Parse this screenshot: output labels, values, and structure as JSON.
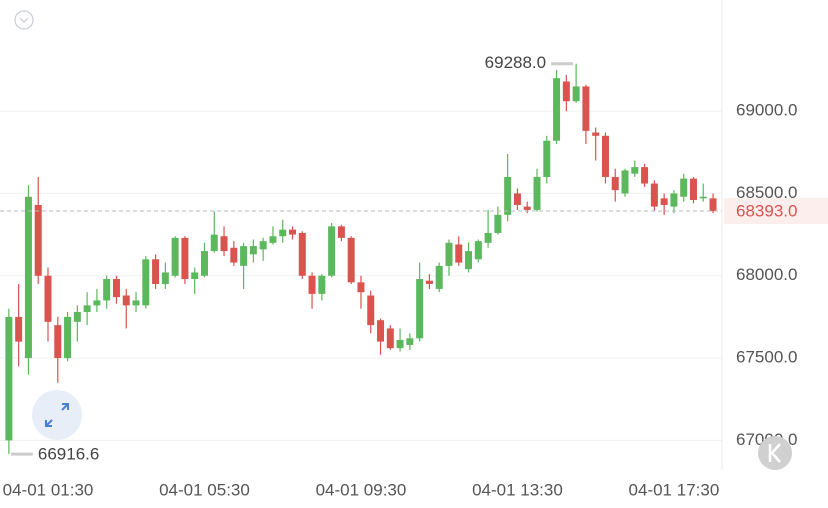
{
  "chart_data": {
    "type": "candlestick",
    "categories": [
      null,
      null,
      null,
      null,
      "04-01 01:30",
      null,
      null,
      null,
      null,
      null,
      null,
      null,
      null,
      null,
      null,
      null,
      null,
      null,
      null,
      null,
      "04-01 05:30",
      null,
      null,
      null,
      null,
      null,
      null,
      null,
      null,
      null,
      null,
      null,
      null,
      null,
      null,
      null,
      "04-01 09:30",
      null,
      null,
      null,
      null,
      null,
      null,
      null,
      null,
      null,
      null,
      null,
      null,
      null,
      null,
      null,
      "04-01 13:30",
      null,
      null,
      null,
      null,
      null,
      null,
      null,
      null,
      null,
      null,
      null,
      null,
      null,
      null,
      null,
      "04-01 17:30",
      null,
      null,
      null,
      null
    ],
    "open": [
      67000,
      67750,
      67500,
      68430,
      68000,
      67700,
      67500,
      67720,
      67780,
      67820,
      67850,
      67980,
      67880,
      67820,
      67820,
      68100,
      67950,
      68000,
      68230,
      67980,
      68000,
      68150,
      68240,
      68170,
      68060,
      68130,
      68160,
      68200,
      68240,
      68280,
      68260,
      68000,
      67890,
      68000,
      68300,
      68230,
      67960,
      67880,
      67730,
      67680,
      67560,
      67580,
      67620,
      67970,
      67920,
      68060,
      68190,
      68040,
      68100,
      68200,
      68260,
      68370,
      68500,
      68420,
      68400,
      68600,
      68820,
      69180,
      69060,
      69150,
      68870,
      68850,
      68600,
      68500,
      68620,
      68660,
      68560,
      68470,
      68420,
      68480,
      68590,
      68470,
      68470
    ],
    "high": [
      67800,
      67950,
      68550,
      68600,
      68050,
      67750,
      67780,
      67820,
      67900,
      67920,
      68000,
      68000,
      67920,
      67900,
      68120,
      68130,
      68080,
      68240,
      68240,
      68050,
      68200,
      68390,
      68300,
      68210,
      68200,
      68220,
      68230,
      68300,
      68340,
      68300,
      68270,
      68020,
      68010,
      68320,
      68310,
      68240,
      68000,
      67910,
      67740,
      67700,
      67680,
      67650,
      68080,
      68010,
      68080,
      68220,
      68240,
      68200,
      68220,
      68400,
      68420,
      68740,
      68530,
      68450,
      68650,
      68850,
      69250,
      69220,
      69288,
      69160,
      68900,
      68870,
      68650,
      68650,
      68700,
      68680,
      68580,
      68500,
      68520,
      68620,
      68600,
      68560,
      68500
    ],
    "low": [
      66916.6,
      67450,
      67400,
      67950,
      67600,
      67350,
      67480,
      67600,
      67700,
      67780,
      67800,
      67830,
      67680,
      67780,
      67800,
      67920,
      67920,
      67990,
      67950,
      67890,
      67990,
      68140,
      68120,
      68060,
      67920,
      68080,
      68090,
      68190,
      68200,
      68220,
      67980,
      67800,
      67850,
      67990,
      68210,
      67950,
      67800,
      67650,
      67520,
      67550,
      67540,
      67550,
      67600,
      67920,
      67900,
      68000,
      68060,
      68020,
      68080,
      68170,
      68250,
      68330,
      68400,
      68380,
      68390,
      68560,
      68800,
      69000,
      69050,
      68800,
      68700,
      68560,
      68450,
      68480,
      68600,
      68540,
      68390,
      68370,
      68380,
      68450,
      68440,
      68450,
      68380
    ],
    "close": [
      67750,
      67600,
      68480,
      68000,
      67720,
      67500,
      67750,
      67780,
      67820,
      67850,
      67980,
      67870,
      67820,
      67850,
      68100,
      67950,
      68020,
      68230,
      67980,
      68020,
      68150,
      68250,
      68150,
      68080,
      68180,
      68180,
      68210,
      68240,
      68280,
      68250,
      68000,
      67890,
      68000,
      68300,
      68230,
      67960,
      67900,
      67700,
      67600,
      67560,
      67610,
      67620,
      67980,
      67950,
      68060,
      68200,
      68080,
      68150,
      68210,
      68260,
      68370,
      68600,
      68430,
      68400,
      68600,
      68820,
      69200,
      69060,
      69150,
      68880,
      68850,
      68600,
      68520,
      68640,
      68660,
      68560,
      68420,
      68430,
      68500,
      68590,
      68460,
      68480,
      68393
    ],
    "up_color": "#5cb85c",
    "down_color": "#d9534f",
    "ylim": [
      66820,
      69675
    ],
    "yticks": [
      {
        "value": 67000,
        "label": "67000.0"
      },
      {
        "value": 67500,
        "label": "67500.0"
      },
      {
        "value": 68000,
        "label": "68000.0"
      },
      {
        "value": 68500,
        "label": "68500.0"
      },
      {
        "value": 69000,
        "label": "69000.0"
      }
    ],
    "grid": true,
    "high_marker": {
      "value": 69288,
      "label": "69288.0"
    },
    "low_marker": {
      "value": 66916.6,
      "label": "66916.6"
    },
    "last_price": {
      "value": 68393,
      "label": "68393.0"
    }
  }
}
